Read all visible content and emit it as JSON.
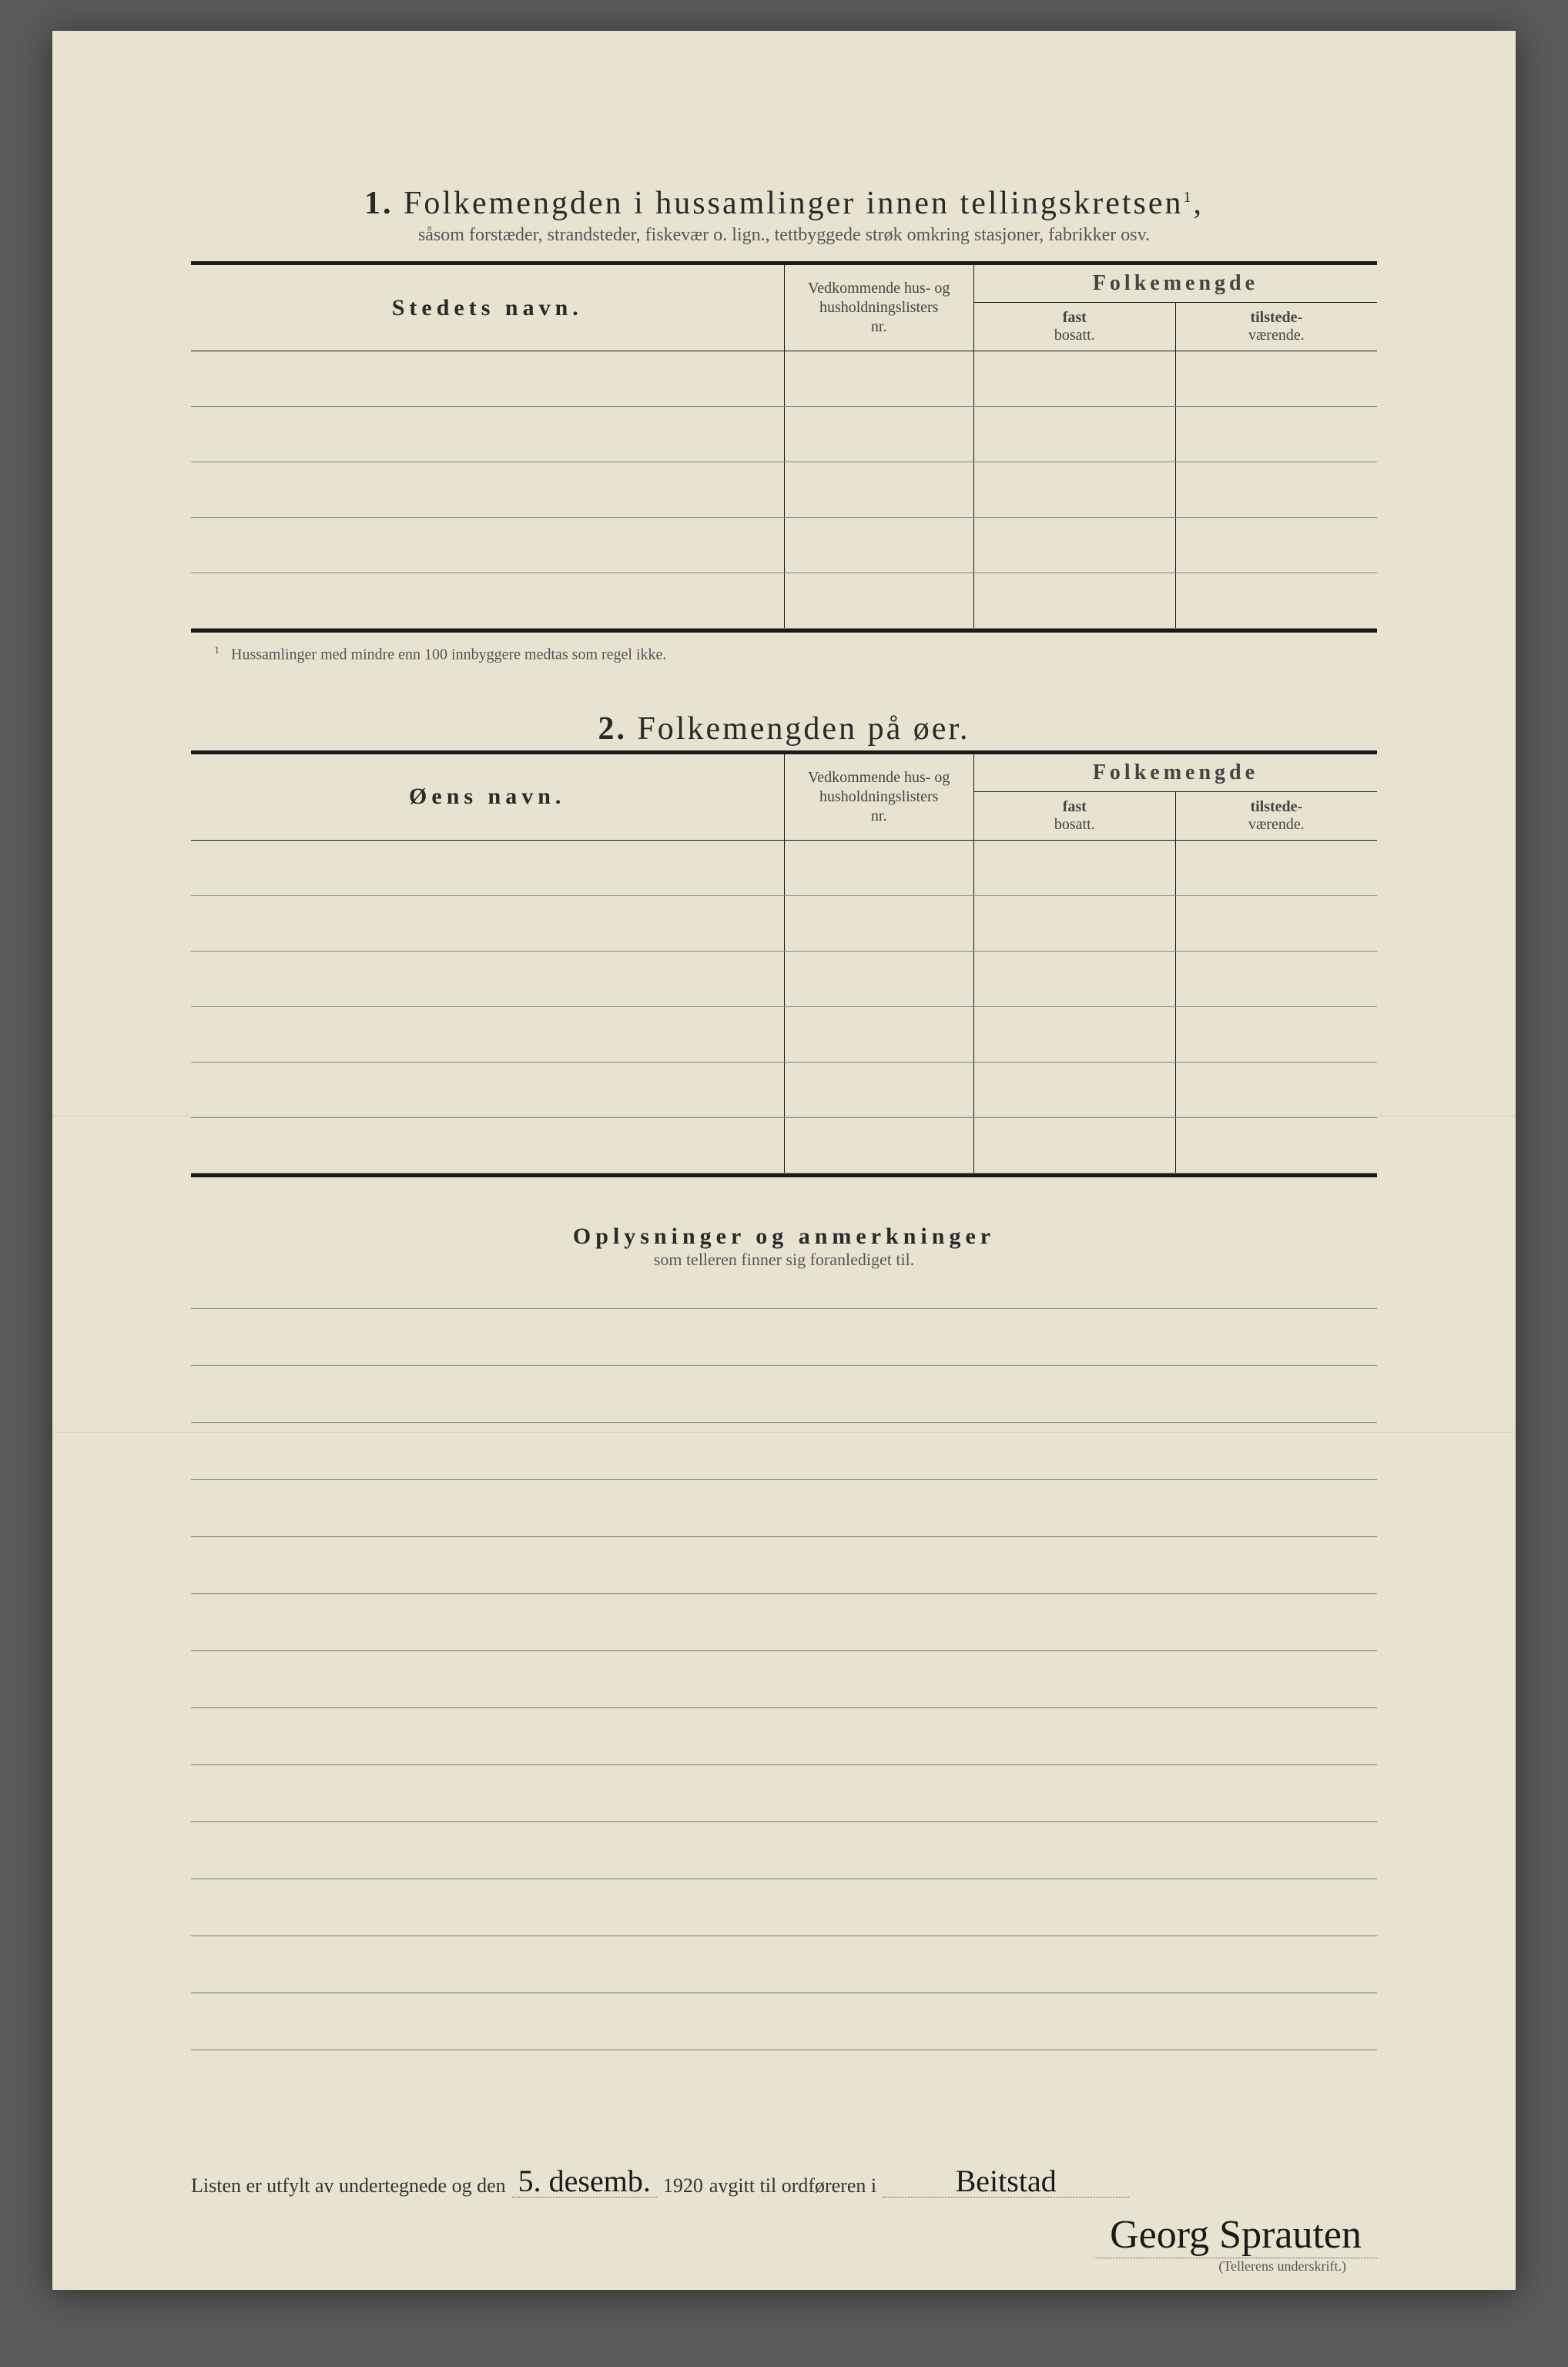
{
  "section1": {
    "number": "1.",
    "title_main": "Folkemengden i hussamlinger innen tellingskretsen",
    "title_sup": "1",
    "title_punct": ",",
    "subtitle": "såsom forstæder, strandsteder, fiskevær o. lign., tettbyggede strøk omkring stasjoner, fabrikker osv.",
    "col_name": "Stedets navn.",
    "col_nr_l1": "Vedkommende hus- og",
    "col_nr_l2": "husholdningslisters",
    "col_nr_l3": "nr.",
    "col_fm": "Folkemengde",
    "col_fast_l1": "fast",
    "col_fast_l2": "bosatt.",
    "col_til_l1": "tilstede-",
    "col_til_l2": "værende.",
    "row_count": 5,
    "footnote_mark": "1",
    "footnote": "Hussamlinger med mindre enn 100 innbyggere medtas som regel ikke."
  },
  "section2": {
    "number": "2.",
    "title_main": "Folkemengden på øer.",
    "col_name": "Øens navn.",
    "row_count": 6
  },
  "section3": {
    "title": "Oplysninger og anmerkninger",
    "subtitle": "som telleren finner sig foranlediget til.",
    "line_count": 13
  },
  "signature": {
    "prefix": "Listen er utfylt av undertegnede og den",
    "date_written": "5. desemb.",
    "year": "1920",
    "mid": "avgitt til ordføreren i",
    "place_written": "Beitstad",
    "name_written": "Georg Sprauten",
    "caption": "(Tellerens underskrift.)"
  },
  "style": {
    "paper_bg": "#e8e2d0",
    "ink": "#1a1a1a",
    "faint": "#555"
  }
}
